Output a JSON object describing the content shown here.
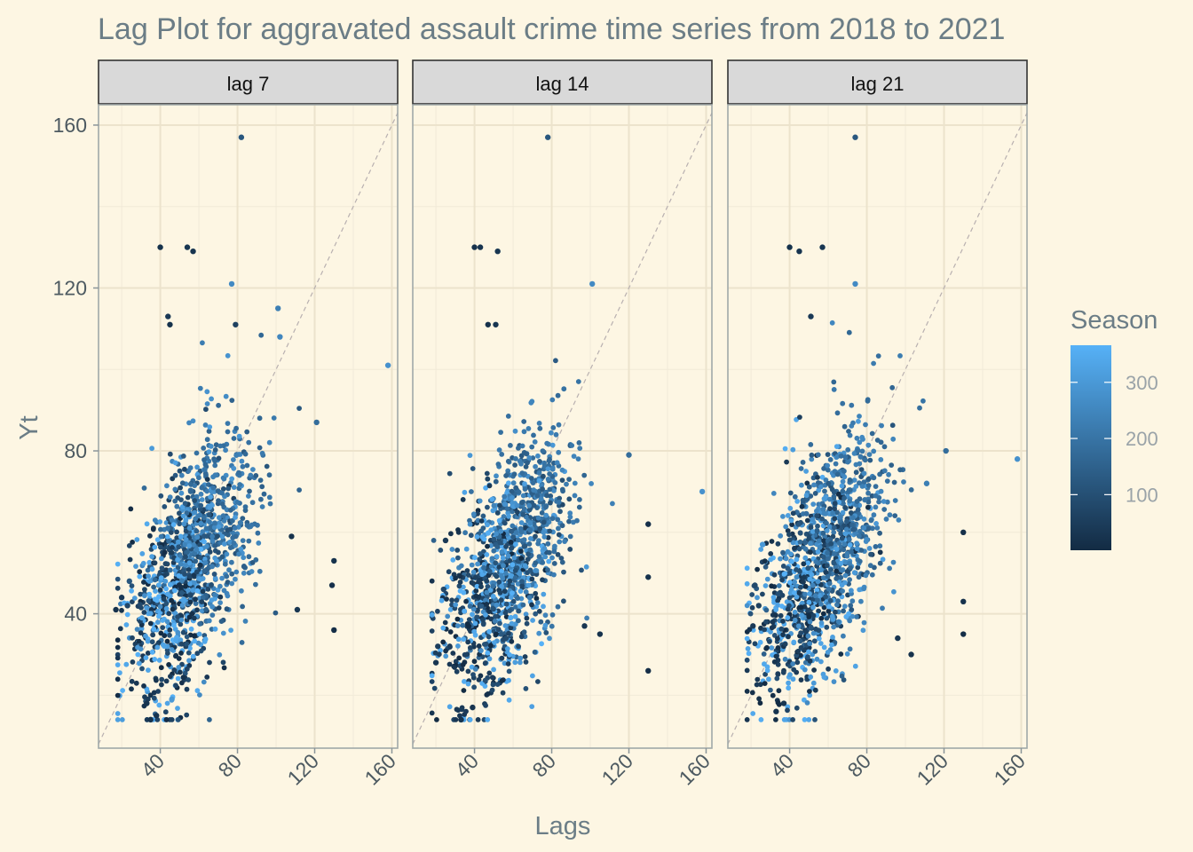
{
  "chart_data": {
    "type": "scatter",
    "title": "Lag Plot for aggravated assault crime time series from 2018 to 2021",
    "xlabel": "Lags",
    "ylabel": "Yt",
    "xlim": [
      8,
      163
    ],
    "ylim": [
      7,
      165
    ],
    "x_ticks": [
      40,
      80,
      120,
      160
    ],
    "y_ticks": [
      40,
      80,
      120,
      160
    ],
    "x_tick_labels": [
      "40",
      "80",
      "120",
      "160"
    ],
    "y_tick_labels": [
      "40",
      "80",
      "120",
      "160"
    ],
    "grid": true,
    "reference_line": "y = x (dashed)",
    "facets": [
      "lag 7",
      "lag 14",
      "lag 21"
    ],
    "legend": {
      "title": "Season",
      "position": "right",
      "range": [
        1,
        366
      ],
      "ticks": [
        100,
        200,
        300
      ],
      "tick_labels": [
        "100",
        "200",
        "300"
      ],
      "color_low": "#132b43",
      "color_high": "#56b1f7"
    },
    "panels": [
      {
        "label": "lag 7",
        "points": [
          [
            82,
            157,
            120
          ],
          [
            40,
            130,
            20
          ],
          [
            54,
            130,
            30
          ],
          [
            57,
            129,
            25
          ],
          [
            77,
            121,
            260
          ],
          [
            44,
            113,
            40
          ],
          [
            101,
            115,
            230
          ],
          [
            45,
            111,
            20
          ],
          [
            79,
            111,
            60
          ],
          [
            102,
            108,
            250
          ],
          [
            158,
            101,
            280
          ],
          [
            121,
            87,
            180
          ],
          [
            130,
            53,
            20
          ],
          [
            129,
            47,
            15
          ],
          [
            130,
            36,
            10
          ],
          [
            111,
            41,
            30
          ],
          [
            108,
            59,
            20
          ],
          [
            33,
            18,
            30
          ],
          [
            38,
            15,
            25
          ],
          [
            35,
            14,
            20
          ],
          [
            46,
            19,
            300
          ],
          [
            17,
            41,
            20
          ],
          [
            20,
            44,
            40
          ],
          [
            24,
            48,
            120
          ],
          [
            23,
            42,
            80
          ]
        ]
      },
      {
        "label": "lag 14",
        "points": [
          [
            78,
            157,
            120
          ],
          [
            40,
            130,
            20
          ],
          [
            43,
            130,
            25
          ],
          [
            52,
            129,
            30
          ],
          [
            101,
            121,
            260
          ],
          [
            47,
            111,
            20
          ],
          [
            51,
            111,
            30
          ],
          [
            158,
            70,
            280
          ],
          [
            130,
            62,
            15
          ],
          [
            130,
            49,
            20
          ],
          [
            130,
            26,
            10
          ],
          [
            120,
            79,
            180
          ],
          [
            105,
            35,
            20
          ],
          [
            97,
            37,
            30
          ],
          [
            33,
            14,
            20
          ],
          [
            39,
            17,
            25
          ],
          [
            20,
            28,
            30
          ],
          [
            21,
            32,
            50
          ],
          [
            24,
            46,
            80
          ],
          [
            25,
            58,
            40
          ]
        ]
      },
      {
        "label": "lag 21",
        "points": [
          [
            74,
            157,
            120
          ],
          [
            40,
            130,
            20
          ],
          [
            45,
            129,
            25
          ],
          [
            57,
            130,
            30
          ],
          [
            74,
            121,
            260
          ],
          [
            51,
            113,
            40
          ],
          [
            158,
            78,
            280
          ],
          [
            130,
            60,
            15
          ],
          [
            130,
            43,
            20
          ],
          [
            130,
            35,
            10
          ],
          [
            121,
            80,
            180
          ],
          [
            111,
            72,
            230
          ],
          [
            103,
            30,
            20
          ],
          [
            96,
            34,
            30
          ],
          [
            33,
            16,
            25
          ],
          [
            37,
            18,
            30
          ],
          [
            21,
            37,
            40
          ],
          [
            22,
            47,
            80
          ],
          [
            26,
            57,
            300
          ],
          [
            24,
            42,
            60
          ]
        ]
      }
    ]
  }
}
